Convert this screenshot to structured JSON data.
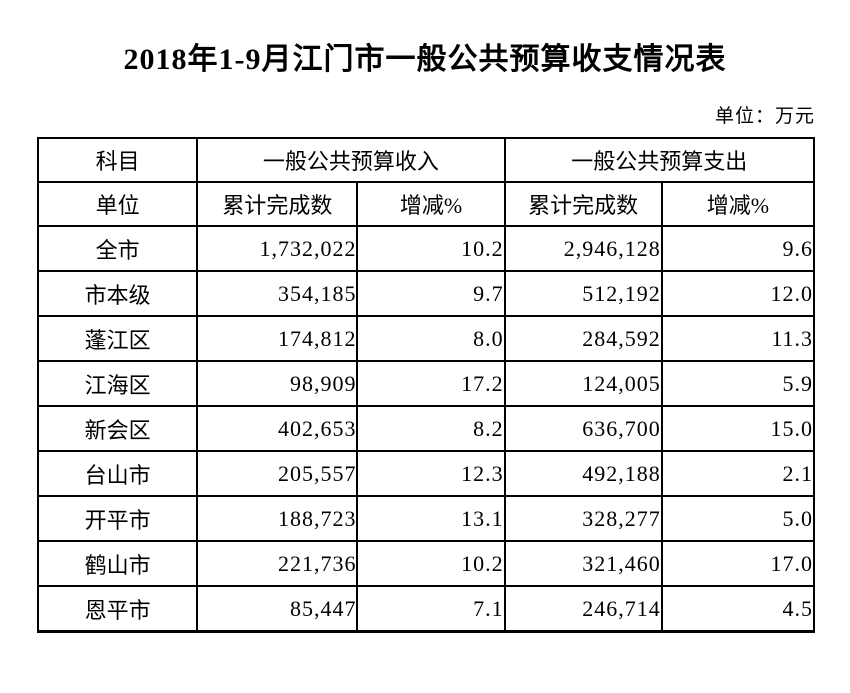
{
  "title": "2018年1-9月江门市一般公共预算收支情况表",
  "unit_note": "单位：万元",
  "table": {
    "header": {
      "subject": "科目",
      "unit": "单位",
      "revenue_group": "一般公共预算收入",
      "expenditure_group": "一般公共预算支出",
      "cumulative_label": "累计完成数",
      "change_label": "增减%"
    },
    "rows": [
      {
        "name": "全市",
        "rev": "1,732,022",
        "rev_pct": "10.2",
        "exp": "2,946,128",
        "exp_pct": "9.6"
      },
      {
        "name": "市本级",
        "rev": "354,185",
        "rev_pct": "9.7",
        "exp": "512,192",
        "exp_pct": "12.0"
      },
      {
        "name": "蓬江区",
        "rev": "174,812",
        "rev_pct": "8.0",
        "exp": "284,592",
        "exp_pct": "11.3"
      },
      {
        "name": "江海区",
        "rev": "98,909",
        "rev_pct": "17.2",
        "exp": "124,005",
        "exp_pct": "5.9"
      },
      {
        "name": "新会区",
        "rev": "402,653",
        "rev_pct": "8.2",
        "exp": "636,700",
        "exp_pct": "15.0"
      },
      {
        "name": "台山市",
        "rev": "205,557",
        "rev_pct": "12.3",
        "exp": "492,188",
        "exp_pct": "2.1"
      },
      {
        "name": "开平市",
        "rev": "188,723",
        "rev_pct": "13.1",
        "exp": "328,277",
        "exp_pct": "5.0"
      },
      {
        "name": "鹤山市",
        "rev": "221,736",
        "rev_pct": "10.2",
        "exp": "321,460",
        "exp_pct": "17.0"
      },
      {
        "name": "恩平市",
        "rev": "85,447",
        "rev_pct": "7.1",
        "exp": "246,714",
        "exp_pct": "4.5"
      }
    ]
  }
}
